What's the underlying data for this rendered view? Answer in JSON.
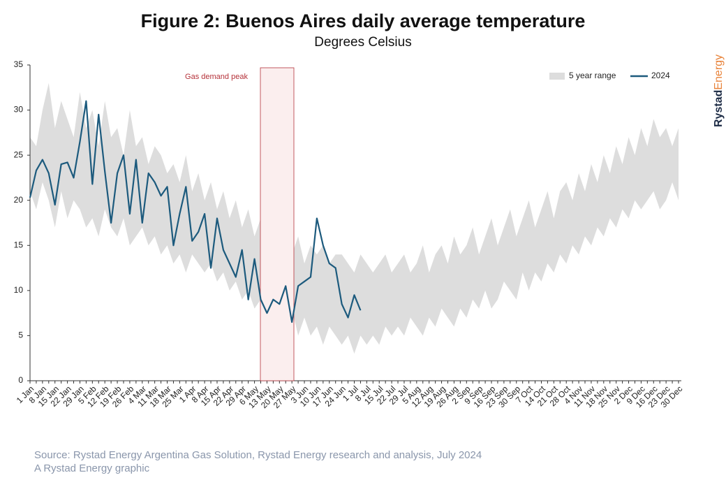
{
  "chart_data": {
    "type": "line",
    "title": "Figure 2: Buenos Aires daily average temperature",
    "subtitle": "Degrees Celsius",
    "annotation": "Gas demand peak",
    "source": "Source: Rystad Energy Argentina Gas Solution, Rystad Energy research and analysis, July 2024",
    "credit": "A Rystad Energy graphic",
    "logo": {
      "part1": "Rystad",
      "part2": "Energy"
    },
    "categories": [
      "1 Jan",
      null,
      "8 Jan",
      null,
      "15 Jan",
      null,
      "22 Jan",
      null,
      "29 Jan",
      null,
      "5 Feb",
      null,
      "12 Feb",
      null,
      "19 Feb",
      null,
      "26 Feb",
      null,
      "4 Mar",
      null,
      "11 Mar",
      null,
      "18 Mar",
      null,
      "25 Mar",
      null,
      "1 Apr",
      null,
      "8 Apr",
      null,
      "15 Apr",
      null,
      "22 Apr",
      null,
      "29 Apr",
      null,
      "6 May",
      null,
      "13 May",
      null,
      "20 May",
      null,
      "27 May",
      null,
      "3 Jun",
      null,
      "10 Jun",
      null,
      "17 Jun",
      null,
      "24 Jun",
      null,
      "1 Jul",
      null,
      "8 Jul",
      null,
      "15 Jul",
      null,
      "22 Jul",
      null,
      "29 Jul",
      null,
      "5 Aug",
      null,
      "12 Aug",
      null,
      "19 Aug",
      null,
      "26 Aug",
      null,
      "2 Sep",
      null,
      "9 Sep",
      null,
      "16 Sep",
      null,
      "23 Sep",
      null,
      "30 Sep",
      null,
      "7 Oct",
      null,
      "14 Oct",
      null,
      "21 Oct",
      null,
      "28 Oct",
      null,
      "4 Nov",
      null,
      "11 Nov",
      null,
      "18 Nov",
      null,
      "25 Nov",
      null,
      "2 Dec",
      null,
      "9 Dec",
      null,
      "16 Dec",
      null,
      "23 Dec",
      null,
      "30 Dec"
    ],
    "series": [
      {
        "name": "5 year range",
        "color": "#dddddd",
        "high": [
          27,
          26,
          30,
          33,
          28,
          31,
          29,
          27,
          32,
          28,
          30,
          26,
          31,
          27,
          28,
          25,
          30,
          26,
          27,
          24,
          26,
          25,
          23,
          24,
          22,
          25,
          21,
          23,
          20,
          22,
          19,
          21,
          18,
          20,
          17,
          19,
          16,
          18,
          16,
          17,
          15,
          16,
          14,
          16,
          13,
          15,
          14,
          15,
          13,
          14,
          14,
          13,
          12,
          14,
          13,
          12,
          13,
          14,
          12,
          13,
          14,
          12,
          13,
          15,
          12,
          14,
          15,
          13,
          16,
          14,
          15,
          17,
          14,
          16,
          18,
          15,
          17,
          19,
          16,
          18,
          20,
          17,
          19,
          21,
          18,
          21,
          22,
          20,
          23,
          21,
          24,
          22,
          25,
          23,
          26,
          24,
          27,
          25,
          28,
          26,
          29,
          27,
          28,
          26,
          28
        ],
        "low": [
          21,
          19,
          22,
          20,
          17,
          21,
          18,
          20,
          19,
          17,
          18,
          16,
          19,
          17,
          16,
          18,
          15,
          16,
          17,
          15,
          16,
          14,
          15,
          13,
          14,
          12,
          14,
          13,
          12,
          13,
          11,
          12,
          10,
          11,
          9,
          10,
          8,
          9,
          8,
          7,
          7,
          6,
          8,
          5,
          7,
          5,
          6,
          4,
          6,
          5,
          4,
          5,
          3,
          5,
          4,
          5,
          4,
          6,
          5,
          6,
          5,
          7,
          6,
          5,
          7,
          6,
          8,
          7,
          6,
          8,
          7,
          9,
          8,
          10,
          8,
          9,
          11,
          10,
          9,
          12,
          10,
          12,
          11,
          13,
          12,
          14,
          13,
          15,
          14,
          16,
          15,
          17,
          16,
          18,
          17,
          19,
          18,
          20,
          19,
          20,
          21,
          19,
          20,
          22,
          20
        ]
      },
      {
        "name": "2024",
        "color": "#1c5a7d",
        "values": [
          20.3,
          23.3,
          24.5,
          23,
          19.5,
          24,
          24.2,
          22.5,
          26.5,
          31,
          21.8,
          29.5,
          23.2,
          17.5,
          23,
          25,
          18.5,
          24.5,
          17.5,
          23,
          22,
          20.5,
          21.5,
          15,
          18.5,
          21.5,
          15.5,
          16.5,
          18.5,
          12.5,
          18,
          14.5,
          13,
          11.5,
          14.5,
          9,
          13.5,
          9,
          7.5,
          9,
          8.5,
          10.5,
          6.5,
          10.5,
          11,
          11.5,
          18,
          15,
          13,
          12.5,
          8.5,
          7,
          9.5,
          7.8,
          null,
          null,
          null,
          null,
          null,
          null,
          null,
          null,
          null,
          null,
          null,
          null,
          null,
          null,
          null,
          null,
          null,
          null,
          null,
          null,
          null,
          null,
          null,
          null,
          null,
          null,
          null,
          null,
          null,
          null,
          null,
          null,
          null,
          null,
          null,
          null,
          null,
          null,
          null,
          null,
          null,
          null,
          null,
          null,
          null,
          null,
          null,
          null,
          null,
          null,
          null
        ]
      }
    ],
    "ylim": [
      0,
      35
    ],
    "yticks": [
      0,
      5,
      10,
      15,
      20,
      25,
      30,
      35
    ],
    "legend": "top-right"
  }
}
